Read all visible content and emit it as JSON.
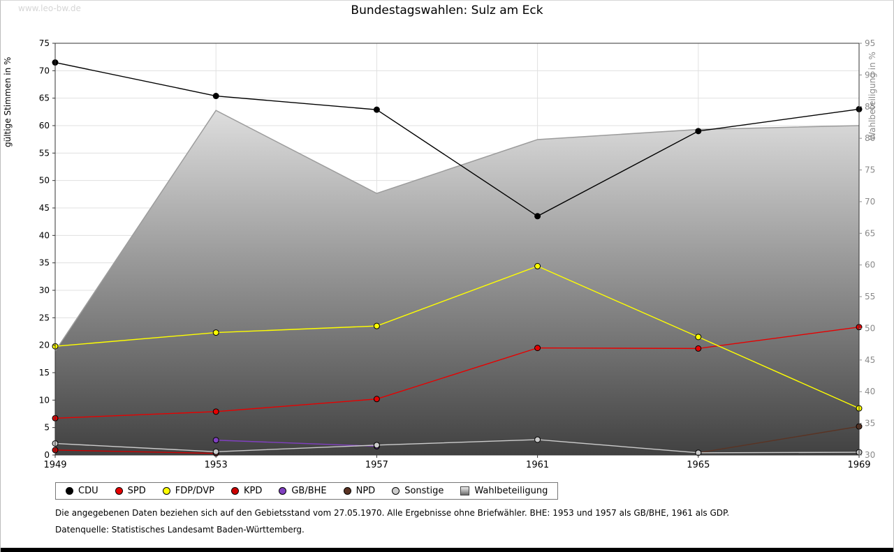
{
  "watermark": "www.leo-bw.de",
  "chart_data": {
    "type": "line",
    "title": "Bundestagswahlen: Sulz am Eck",
    "x": [
      "1949",
      "1953",
      "1957",
      "1961",
      "1965",
      "1969"
    ],
    "left_axis": {
      "label": "gültige Stimmen in %",
      "min": 0,
      "max": 75,
      "step": 5,
      "color": "#000000"
    },
    "right_axis": {
      "label": "Wahlbeteiligung in %",
      "min": 30,
      "max": 95,
      "step": 5,
      "color": "#8a8a8a"
    },
    "grid": true,
    "legend_position": "bottom",
    "series": [
      {
        "name": "CDU",
        "color": "#000000",
        "marker": "circle",
        "values": [
          71.5,
          65.4,
          62.9,
          43.5,
          59.0,
          63.0
        ]
      },
      {
        "name": "SPD",
        "color": "#e60000",
        "marker": "circle",
        "values": [
          6.7,
          7.9,
          10.2,
          19.5,
          19.4,
          23.3
        ]
      },
      {
        "name": "FDP/DVP",
        "color": "#ffff00",
        "marker": "circle",
        "values": [
          19.8,
          22.3,
          23.5,
          34.4,
          21.5,
          8.5
        ]
      },
      {
        "name": "KPD",
        "color": "#cc0000",
        "marker": "circle",
        "values": [
          0.9,
          0.3,
          null,
          null,
          null,
          null
        ]
      },
      {
        "name": "GB/BHE",
        "color": "#8040c0",
        "marker": "circle",
        "values": [
          null,
          2.7,
          1.6,
          null,
          null,
          null
        ]
      },
      {
        "name": "NPD",
        "color": "#5a3323",
        "marker": "circle",
        "values": [
          null,
          null,
          null,
          null,
          0.4,
          5.2
        ]
      },
      {
        "name": "Sonstige",
        "color": "#cccccc",
        "marker": "circle",
        "values": [
          2.1,
          0.6,
          1.8,
          2.8,
          0.4,
          0.5
        ]
      }
    ],
    "turnout": {
      "name": "Wahlbeteiligung",
      "axis": "right",
      "marker": "square",
      "values": [
        46.4,
        84.4,
        71.3,
        79.8,
        81.4,
        82.0
      ],
      "fill_top": "#fcfcfc",
      "fill_bottom": "#414141",
      "outline": "#9c9c9c"
    }
  },
  "footnotes": {
    "line1": "Die angegebenen Daten beziehen sich auf den Gebietsstand vom 27.05.1970. Alle Ergebnisse ohne Briefwähler. BHE: 1953 und 1957 als GB/BHE, 1961 als GDP.",
    "line2": "Datenquelle: Statistisches Landesamt Baden-Württemberg."
  }
}
